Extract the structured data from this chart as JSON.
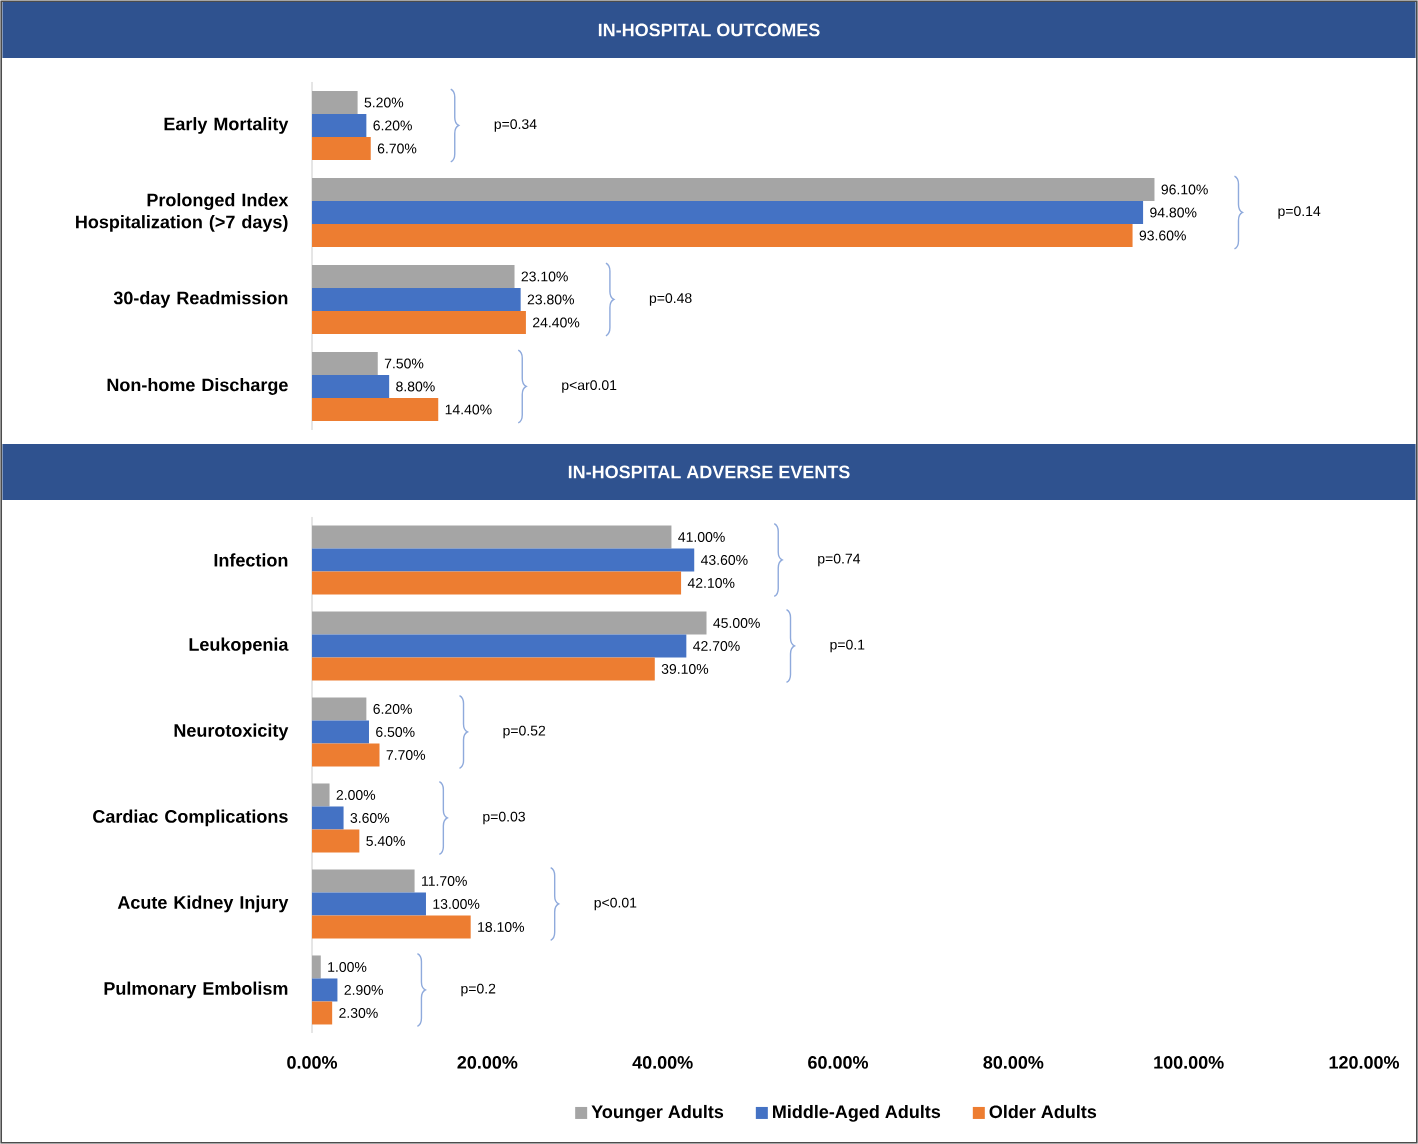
{
  "chart_data": [
    {
      "type": "bar",
      "orientation": "horizontal",
      "title": "IN-HOSPITAL OUTCOMES",
      "categories": [
        "Early Mortality",
        "Prolonged Index Hospitalization (>7 days)",
        "30-day Readmission",
        "Non-home Discharge"
      ],
      "series": [
        {
          "color": "#a5a5a5",
          "values": [
            5.2,
            96.1,
            23.1,
            7.5
          ],
          "value_labels": [
            "5.20%",
            "96.10%",
            "23.10%",
            "7.50%"
          ]
        },
        {
          "color": "#4472c4",
          "values": [
            6.2,
            94.8,
            23.8,
            8.8
          ],
          "value_labels": [
            "6.20%",
            "94.80%",
            "23.80%",
            "8.80%"
          ]
        },
        {
          "color": "#ed7d31",
          "values": [
            6.7,
            93.6,
            24.4,
            14.4
          ],
          "value_labels": [
            "6.70%",
            "93.60%",
            "24.40%",
            "14.40%"
          ]
        }
      ],
      "xlim": [
        0,
        120
      ],
      "tick_labels": "y",
      "annotations": [
        "p=0.34",
        "p=0.14",
        "p=0.48",
        "p<ar0.01"
      ]
    },
    {
      "type": "bar",
      "orientation": "horizontal",
      "title": "IN-HOSPITAL ADVERSE EVENTS",
      "categories": [
        "Infection",
        "Leukopenia",
        "Neurotoxicity",
        "Cardiac Complications",
        "Acute Kidney Injury",
        "Pulmonary Embolism"
      ],
      "series": [
        {
          "name": "Younger Adults",
          "color": "#a5a5a5",
          "values": [
            41.0,
            45.0,
            6.2,
            2.0,
            11.7,
            1.0
          ],
          "value_labels": [
            "41.00%",
            "45.00%",
            "6.20%",
            "2.00%",
            "11.70%",
            "1.00%"
          ]
        },
        {
          "name": "Middle-Aged Adults",
          "color": "#4472c4",
          "values": [
            43.6,
            42.7,
            6.5,
            3.6,
            13.0,
            2.9
          ],
          "value_labels": [
            "43.60%",
            "42.70%",
            "6.50%",
            "3.60%",
            "13.00%",
            "2.90%"
          ]
        },
        {
          "name": "Older Adults",
          "color": "#ed7d31",
          "values": [
            42.1,
            39.1,
            7.7,
            5.4,
            18.1,
            2.3
          ],
          "value_labels": [
            "42.10%",
            "39.10%",
            "7.70%",
            "5.40%",
            "18.10%",
            "2.30%"
          ]
        }
      ],
      "xlim": [
        0,
        120
      ],
      "xticks": [
        {
          "value": 0,
          "label": "0.00%"
        },
        {
          "value": 20,
          "label": "20.00%"
        },
        {
          "value": 40,
          "label": "40.00%"
        },
        {
          "value": 60,
          "label": "60.00%"
        },
        {
          "value": 80,
          "label": "80.00%"
        },
        {
          "value": 100,
          "label": "100.00%"
        },
        {
          "value": 120,
          "label": "120.00%"
        }
      ],
      "legend": "bottom",
      "annotations": [
        "p=0.74",
        "p=0.1",
        "p=0.52",
        "p=0.03",
        "p<0.01",
        "p=0.2"
      ]
    }
  ]
}
